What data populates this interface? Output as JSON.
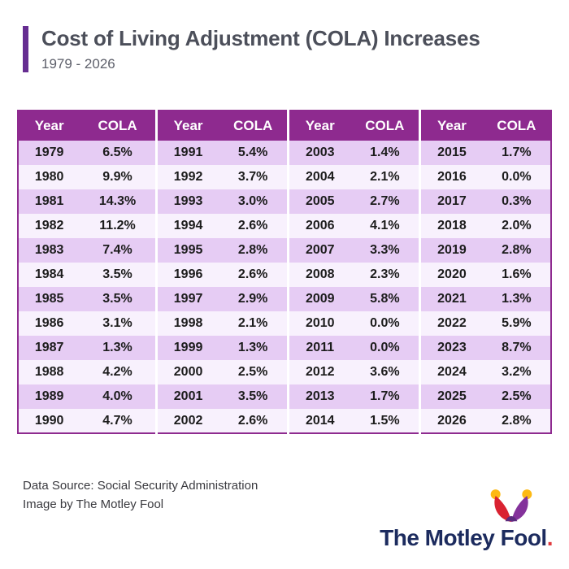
{
  "header": {
    "title": "Cost of Living Adjustment (COLA) Increases",
    "subtitle": "1979 - 2026"
  },
  "chart_data": {
    "type": "table",
    "title": "Cost of Living Adjustment (COLA) Increases",
    "subtitle": "1979 - 2026",
    "columns": [
      "Year",
      "COLA"
    ],
    "column_groups": 4,
    "rows_per_group": 12,
    "rows": [
      [
        "1979",
        "6.5%"
      ],
      [
        "1980",
        "9.9%"
      ],
      [
        "1981",
        "14.3%"
      ],
      [
        "1982",
        "11.2%"
      ],
      [
        "1983",
        "7.4%"
      ],
      [
        "1984",
        "3.5%"
      ],
      [
        "1985",
        "3.5%"
      ],
      [
        "1986",
        "3.1%"
      ],
      [
        "1987",
        "1.3%"
      ],
      [
        "1988",
        "4.2%"
      ],
      [
        "1989",
        "4.0%"
      ],
      [
        "1990",
        "4.7%"
      ],
      [
        "1991",
        "5.4%"
      ],
      [
        "1992",
        "3.7%"
      ],
      [
        "1993",
        "3.0%"
      ],
      [
        "1994",
        "2.6%"
      ],
      [
        "1995",
        "2.8%"
      ],
      [
        "1996",
        "2.6%"
      ],
      [
        "1997",
        "2.9%"
      ],
      [
        "1998",
        "2.1%"
      ],
      [
        "1999",
        "1.3%"
      ],
      [
        "2000",
        "2.5%"
      ],
      [
        "2001",
        "3.5%"
      ],
      [
        "2002",
        "2.6%"
      ],
      [
        "2003",
        "1.4%"
      ],
      [
        "2004",
        "2.1%"
      ],
      [
        "2005",
        "2.7%"
      ],
      [
        "2006",
        "4.1%"
      ],
      [
        "2007",
        "3.3%"
      ],
      [
        "2008",
        "2.3%"
      ],
      [
        "2009",
        "5.8%"
      ],
      [
        "2010",
        "0.0%"
      ],
      [
        "2011",
        "0.0%"
      ],
      [
        "2012",
        "3.6%"
      ],
      [
        "2013",
        "1.7%"
      ],
      [
        "2014",
        "1.5%"
      ],
      [
        "2015",
        "1.7%"
      ],
      [
        "2016",
        "0.0%"
      ],
      [
        "2017",
        "0.3%"
      ],
      [
        "2018",
        "2.0%"
      ],
      [
        "2019",
        "2.8%"
      ],
      [
        "2020",
        "1.6%"
      ],
      [
        "2021",
        "1.3%"
      ],
      [
        "2022",
        "5.9%"
      ],
      [
        "2023",
        "8.7%"
      ],
      [
        "2024",
        "3.2%"
      ],
      [
        "2025",
        "2.5%"
      ],
      [
        "2026",
        "2.8%"
      ]
    ]
  },
  "footer": {
    "source_line1": "Data Source: Social Security Administration",
    "source_line2": "Image by The Motley Fool",
    "brand_name": "The Motley Fool",
    "brand_period": "."
  },
  "colors": {
    "accent_bar": "#662D91",
    "table_header_bg": "#8e2a8f",
    "row_dark": "#e6ccf4",
    "row_light": "#f8f1fd",
    "brand_navy": "#1c2b5e",
    "hat_red": "#d92231",
    "hat_purple": "#84329b",
    "hat_gold": "#fdb913"
  }
}
